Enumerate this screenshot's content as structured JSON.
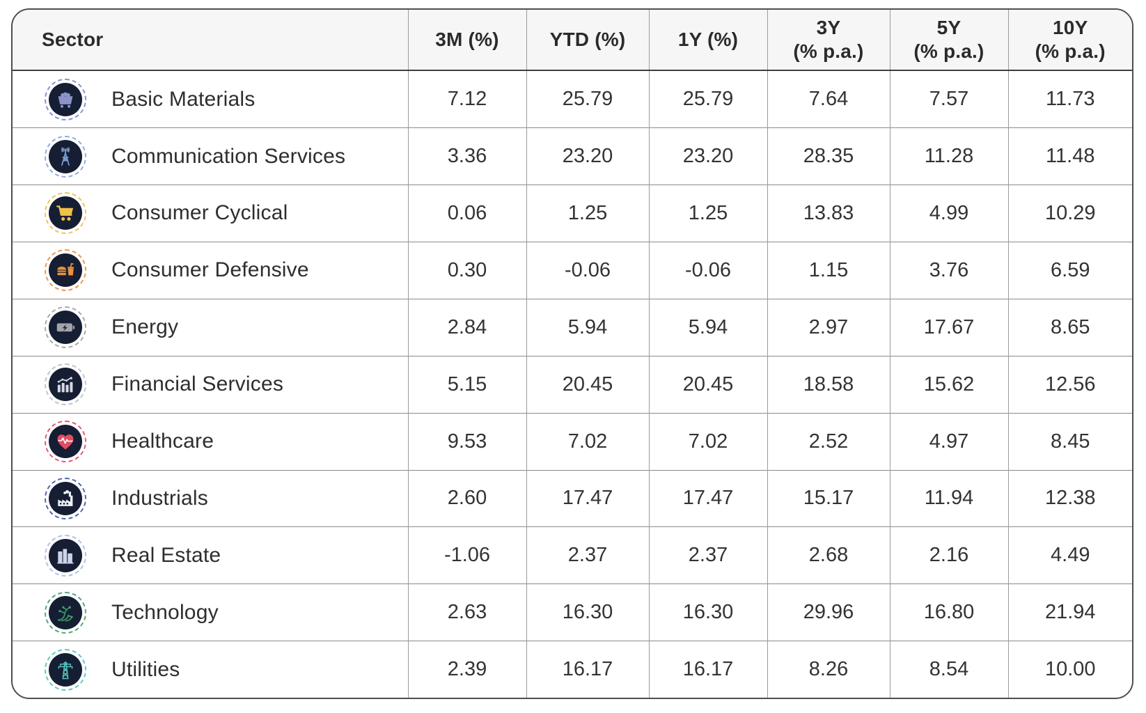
{
  "colors": {
    "icon_circle_bg": "#151e33",
    "header_bg": "#f6f6f6",
    "outer_border": "#4e4e4e",
    "grid_line": "#8a8a8a",
    "text_dark": "#2e2e2e"
  },
  "icon_ring_colors": {
    "mine-cart-icon": "#8a91d0",
    "radio-tower-icon": "#93aedc",
    "shopping-cart-icon": "#efc45f",
    "burger-drink-icon": "#e89a4e",
    "battery-icon": "#ababab",
    "bar-chart-icon": "#bfc4ce",
    "heart-ecg-icon": "#e55a72",
    "factory-icon": "#5368ae",
    "buildings-icon": "#b4bfe8",
    "circuit-icon": "#55a97d",
    "power-pylon-icon": "#62c9c3"
  },
  "table": {
    "columns": [
      {
        "label": "Sector"
      },
      {
        "label": "3M (%)"
      },
      {
        "label": "YTD (%)"
      },
      {
        "label": "1Y (%)"
      },
      {
        "label": "3Y\n(% p.a.)"
      },
      {
        "label": "5Y\n(% p.a.)"
      },
      {
        "label": "10Y\n(% p.a.)"
      }
    ],
    "rows": [
      {
        "sector": "Basic Materials",
        "icon": "mine-cart-icon",
        "values": [
          "7.12",
          "25.79",
          "25.79",
          "7.64",
          "7.57",
          "11.73"
        ]
      },
      {
        "sector": "Communication Services",
        "icon": "radio-tower-icon",
        "values": [
          "3.36",
          "23.20",
          "23.20",
          "28.35",
          "11.28",
          "11.48"
        ]
      },
      {
        "sector": "Consumer Cyclical",
        "icon": "shopping-cart-icon",
        "values": [
          "0.06",
          "1.25",
          "1.25",
          "13.83",
          "4.99",
          "10.29"
        ]
      },
      {
        "sector": "Consumer Defensive",
        "icon": "burger-drink-icon",
        "values": [
          "0.30",
          "-0.06",
          "-0.06",
          "1.15",
          "3.76",
          "6.59"
        ]
      },
      {
        "sector": "Energy",
        "icon": "battery-icon",
        "values": [
          "2.84",
          "5.94",
          "5.94",
          "2.97",
          "17.67",
          "8.65"
        ]
      },
      {
        "sector": "Financial Services",
        "icon": "bar-chart-icon",
        "values": [
          "5.15",
          "20.45",
          "20.45",
          "18.58",
          "15.62",
          "12.56"
        ]
      },
      {
        "sector": "Healthcare",
        "icon": "heart-ecg-icon",
        "values": [
          "9.53",
          "7.02",
          "7.02",
          "2.52",
          "4.97",
          "8.45"
        ]
      },
      {
        "sector": "Industrials",
        "icon": "factory-icon",
        "values": [
          "2.60",
          "17.47",
          "17.47",
          "15.17",
          "11.94",
          "12.38"
        ]
      },
      {
        "sector": "Real Estate",
        "icon": "buildings-icon",
        "values": [
          "-1.06",
          "2.37",
          "2.37",
          "2.68",
          "2.16",
          "4.49"
        ]
      },
      {
        "sector": "Technology",
        "icon": "circuit-icon",
        "values": [
          "2.63",
          "16.30",
          "16.30",
          "29.96",
          "16.80",
          "21.94"
        ]
      },
      {
        "sector": "Utilities",
        "icon": "power-pylon-icon",
        "values": [
          "2.39",
          "16.17",
          "16.17",
          "8.26",
          "8.54",
          "10.00"
        ]
      }
    ]
  },
  "chart_data": {
    "type": "table",
    "title": "",
    "columns": [
      "Sector",
      "3M (%)",
      "YTD (%)",
      "1Y (%)",
      "3Y (% p.a.)",
      "5Y (% p.a.)",
      "10Y (% p.a.)"
    ],
    "rows": [
      [
        "Basic Materials",
        7.12,
        25.79,
        25.79,
        7.64,
        7.57,
        11.73
      ],
      [
        "Communication Services",
        3.36,
        23.2,
        23.2,
        28.35,
        11.28,
        11.48
      ],
      [
        "Consumer Cyclical",
        0.06,
        1.25,
        1.25,
        13.83,
        4.99,
        10.29
      ],
      [
        "Consumer Defensive",
        0.3,
        -0.06,
        -0.06,
        1.15,
        3.76,
        6.59
      ],
      [
        "Energy",
        2.84,
        5.94,
        5.94,
        2.97,
        17.67,
        8.65
      ],
      [
        "Financial Services",
        5.15,
        20.45,
        20.45,
        18.58,
        15.62,
        12.56
      ],
      [
        "Healthcare",
        9.53,
        7.02,
        7.02,
        2.52,
        4.97,
        8.45
      ],
      [
        "Industrials",
        2.6,
        17.47,
        17.47,
        15.17,
        11.94,
        12.38
      ],
      [
        "Real Estate",
        -1.06,
        2.37,
        2.37,
        2.68,
        2.16,
        4.49
      ],
      [
        "Technology",
        2.63,
        16.3,
        16.3,
        29.96,
        16.8,
        21.94
      ],
      [
        "Utilities",
        2.39,
        16.17,
        16.17,
        8.26,
        8.54,
        10.0
      ]
    ]
  }
}
